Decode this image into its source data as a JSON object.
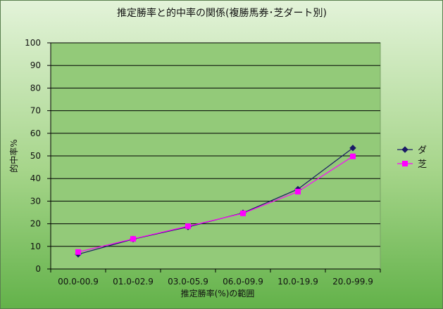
{
  "chart_data": {
    "type": "line",
    "title": "推定勝率と的中率の関係(複勝馬券･芝ダート別)",
    "xlabel": "推定勝率(%)の範囲",
    "ylabel": "的中率%",
    "categories": [
      "00.0-00.9",
      "01.0-02.9",
      "03.0-05.9",
      "06.0-09.9",
      "10.0-19.9",
      "20.0-99.9"
    ],
    "ylim": [
      0,
      100
    ],
    "yticks": [
      0,
      10,
      20,
      30,
      40,
      50,
      60,
      70,
      80,
      90,
      100
    ],
    "grid": true,
    "legend_position": "right",
    "series": [
      {
        "name": "ダ",
        "values": [
          6.5,
          13.2,
          18.6,
          24.8,
          35.3,
          53.5
        ],
        "color": "#1a1a66",
        "marker": "diamond"
      },
      {
        "name": "芝",
        "values": [
          7.5,
          13.3,
          18.9,
          24.6,
          34.2,
          49.8
        ],
        "color": "#ff00ff",
        "marker": "square"
      }
    ]
  }
}
